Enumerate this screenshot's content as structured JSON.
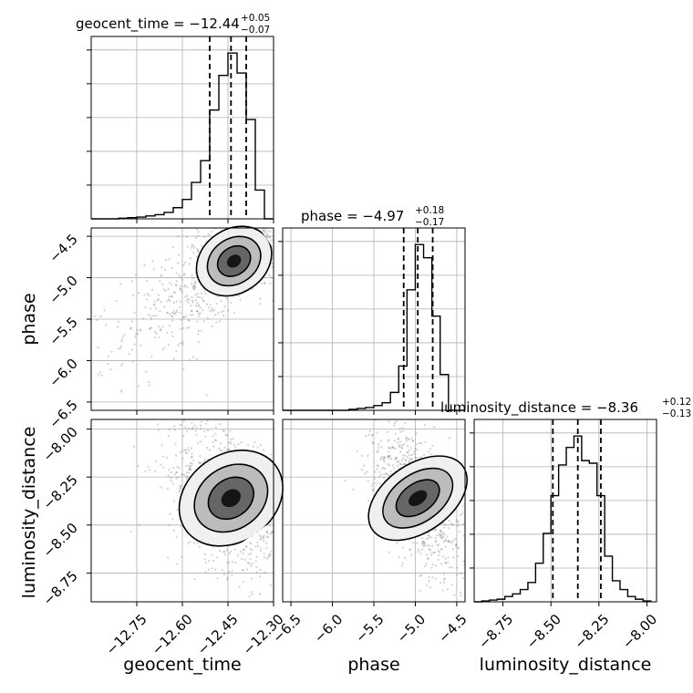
{
  "colors": {
    "line": "#000000",
    "grid": "#b0b0b0",
    "fill_light": "#efefef",
    "fill_mid": "#b8b8b8",
    "fill_dark": "#5c5c5c",
    "fill_darkest": "#111111",
    "points": "#7a7a7a"
  },
  "chart_data": {
    "type": "corner",
    "parameters": [
      {
        "name": "geocent_time",
        "label": "geocent_time",
        "range": [
          -12.9,
          -12.3
        ],
        "ticks": [
          -12.75,
          -12.6,
          -12.45,
          -12.3
        ],
        "tick_labels": [
          "−12.75",
          "−12.60",
          "−12.45",
          "−12.30"
        ],
        "title_main": "geocent_time = −12.44",
        "title_plus": "+0.05",
        "title_minus": "−0.07",
        "quantiles": [
          -12.51,
          -12.44,
          -12.39
        ],
        "hist_bins": [
          -12.9,
          -12.87,
          -12.84,
          -12.81,
          -12.78,
          -12.75,
          -12.72,
          -12.69,
          -12.66,
          -12.63,
          -12.6,
          -12.57,
          -12.54,
          -12.51,
          -12.48,
          -12.45,
          -12.42,
          -12.39,
          -12.36,
          -12.33,
          -12.3
        ],
        "hist_counts": [
          0,
          0,
          0,
          1,
          2,
          3,
          5,
          7,
          11,
          19,
          33,
          62,
          99,
          185,
          244,
          282,
          248,
          169,
          49,
          0
        ]
      },
      {
        "name": "phase",
        "label": "phase",
        "range": [
          -6.6,
          -4.4
        ],
        "ticks": [
          -6.5,
          -6.0,
          -5.5,
          -5.0,
          -4.5
        ],
        "tick_labels": [
          "−6.5",
          "−6.0",
          "−5.5",
          "−5.0",
          "−4.5"
        ],
        "title_main": "phase = −4.97",
        "title_plus": "+0.18",
        "title_minus": "−0.17",
        "quantiles": [
          -5.14,
          -4.97,
          -4.79
        ],
        "hist_bins": [
          -6.6,
          -6.5,
          -6.4,
          -6.3,
          -6.2,
          -6.1,
          -6.0,
          -5.9,
          -5.8,
          -5.7,
          -5.6,
          -5.5,
          -5.4,
          -5.3,
          -5.2,
          -5.1,
          -5.0,
          -4.9,
          -4.8,
          -4.7,
          -4.6,
          -4.5,
          -4.4
        ],
        "hist_counts": [
          0,
          0,
          0,
          0,
          0,
          0,
          0,
          0,
          1,
          2,
          3,
          5,
          8,
          19,
          47,
          128,
          176,
          162,
          100,
          38,
          0,
          0
        ]
      },
      {
        "name": "luminosity_distance",
        "label": "luminosity_distance",
        "range": [
          -8.9,
          -7.95
        ],
        "ticks": [
          -8.75,
          -8.5,
          -8.25,
          -8.0
        ],
        "tick_labels": [
          "−8.75",
          "−8.50",
          "−8.25",
          "−8.00"
        ],
        "title_main": "luminosity_distance = −8.36",
        "title_plus": "+0.12",
        "title_minus": "−0.13",
        "quantiles": [
          -8.49,
          -8.36,
          -8.24
        ],
        "hist_bins": [
          -8.9,
          -8.86,
          -8.82,
          -8.78,
          -8.74,
          -8.7,
          -8.66,
          -8.62,
          -8.58,
          -8.54,
          -8.5,
          -8.46,
          -8.42,
          -8.38,
          -8.34,
          -8.3,
          -8.26,
          -8.22,
          -8.18,
          -8.14,
          -8.1,
          -8.06,
          -8.02,
          -7.98
        ],
        "hist_counts": [
          0,
          1,
          2,
          3,
          6,
          9,
          14,
          22,
          44,
          78,
          121,
          156,
          176,
          189,
          161,
          158,
          121,
          52,
          24,
          14,
          6,
          3,
          1
        ]
      }
    ],
    "pairs": [
      {
        "x": "geocent_time",
        "y": "phase",
        "peak": [
          -12.43,
          -4.8
        ]
      },
      {
        "x": "geocent_time",
        "y": "luminosity_distance",
        "peak": [
          -12.44,
          -8.36
        ]
      },
      {
        "x": "phase",
        "y": "luminosity_distance",
        "peak": [
          -4.97,
          -8.36
        ]
      }
    ]
  }
}
